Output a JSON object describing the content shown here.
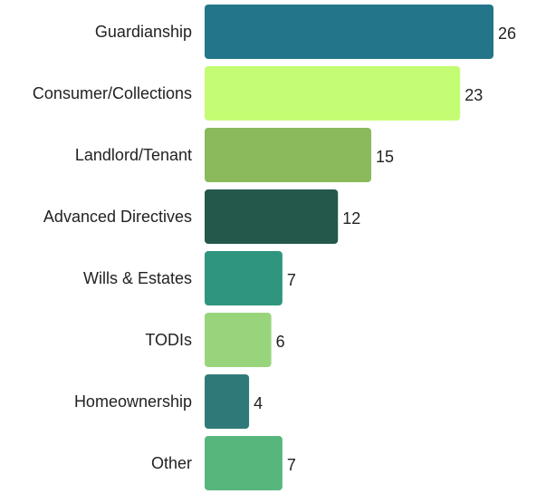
{
  "chart_data": {
    "type": "bar",
    "orientation": "horizontal",
    "categories": [
      "Guardianship",
      "Consumer/Collections",
      "Landlord/Tenant",
      "Advanced Directives",
      "Wills & Estates",
      "TODIs",
      "Homeownership",
      "Other"
    ],
    "values": [
      26,
      23,
      15,
      12,
      7,
      6,
      4,
      7
    ],
    "value_labels": [
      "26",
      "23",
      "15",
      "12",
      "7",
      "6",
      "4",
      "7"
    ],
    "colors": [
      "#23758a",
      "#c4fd74",
      "#8aba5c",
      "#23584a",
      "#2f957f",
      "#98d47c",
      "#2f7a79",
      "#57b67c"
    ],
    "xlim": [
      0,
      26
    ],
    "grid": false,
    "legend": "none"
  }
}
